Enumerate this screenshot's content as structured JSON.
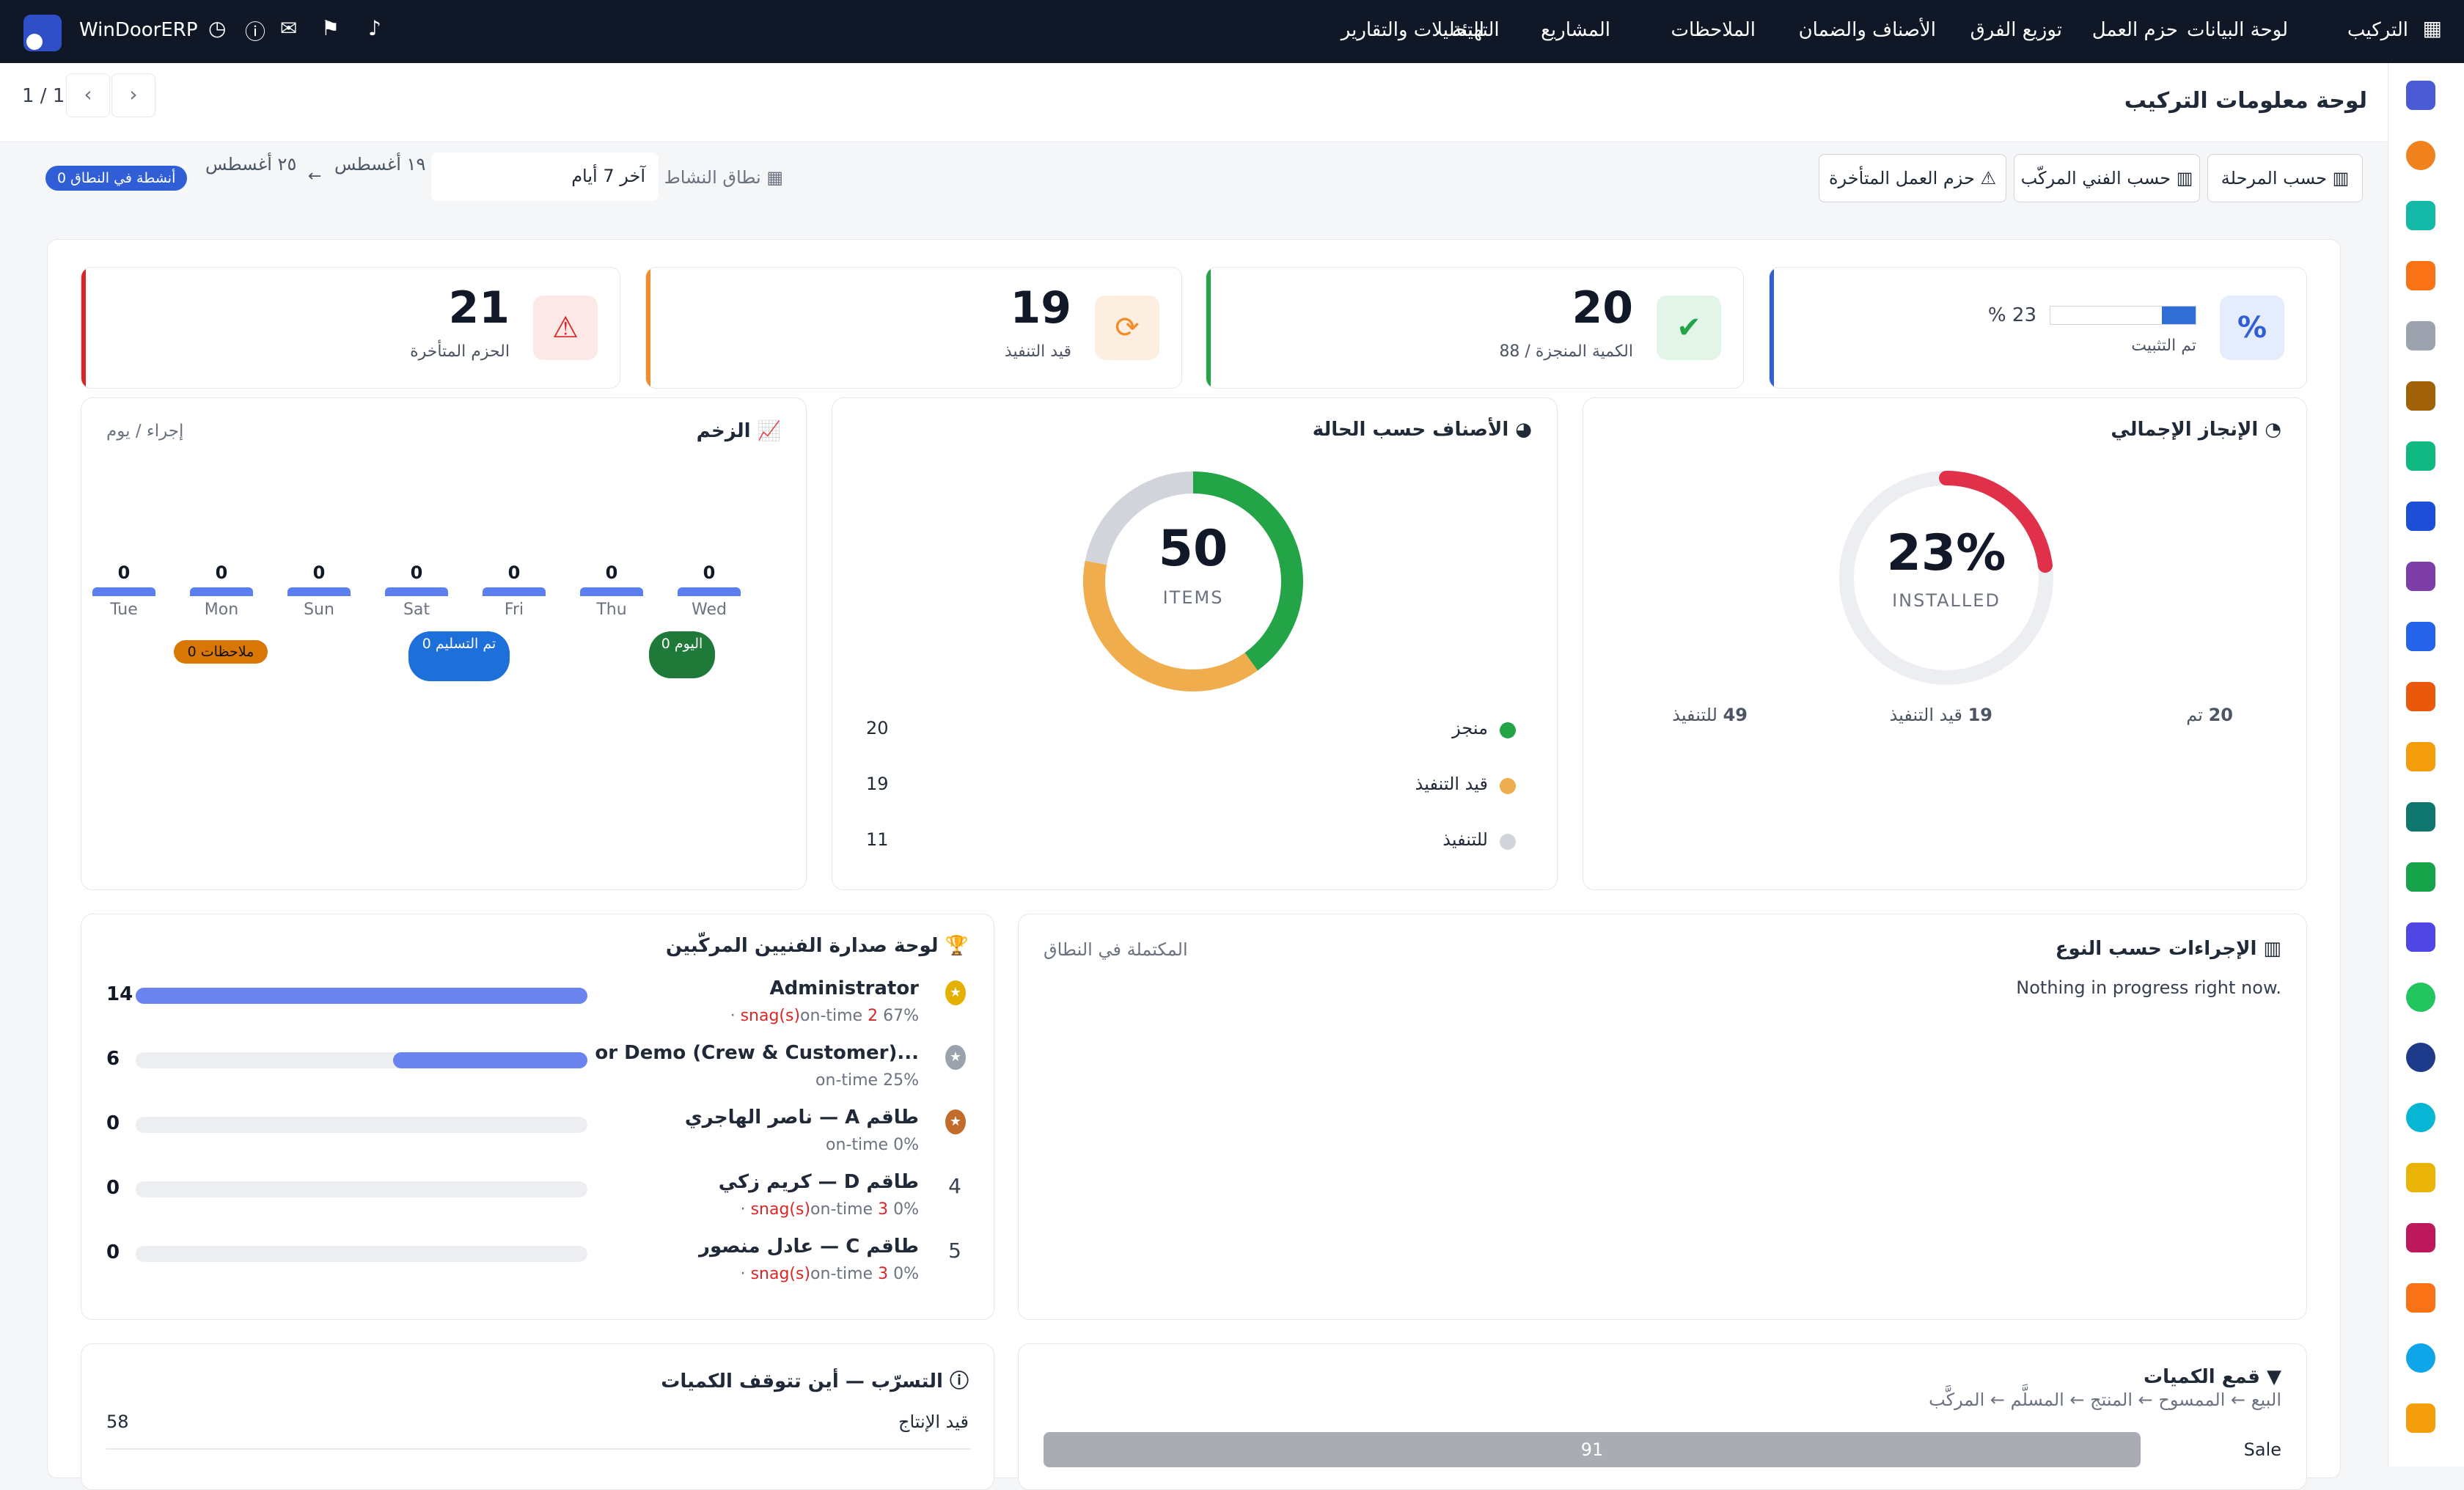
{
  "app": {
    "name": "WinDoorERP"
  },
  "nav": [
    "التركيب",
    "لوحة البيانات",
    "حزم العمل",
    "توزيع الفرق",
    "الأصناف والضمان",
    "الملاحظات",
    "المشاريع",
    "التحليلات والتقارير",
    "التهيئة"
  ],
  "page": {
    "title": "لوحة معلومات التركيب",
    "pager": "1 / 1"
  },
  "toolbar": {
    "by_stage": "حسب المرحلة",
    "by_installer": "حسب الفني المركّب",
    "overdue_packages": "حزم العمل المتأخرة"
  },
  "range": {
    "label": "نطاق النشاط",
    "select": "آخر 7 أيام",
    "from": "١٩ أغسطس",
    "to": "٢٥ أغسطس",
    "arrow": "←",
    "badge": "0 أنشطة في النطاق"
  },
  "kpis": [
    {
      "value": "21",
      "label": "الحزم المتأخرة",
      "color": "#dc2626"
    },
    {
      "value": "19",
      "label": "قيد التنفيذ",
      "color": "#f28c28"
    },
    {
      "value": "20",
      "label": "الكمية المنجزة / 88",
      "color": "#22a447"
    },
    {
      "value": "23 %",
      "label": "تم التثبيت",
      "color": "#2f5ed6",
      "progress": 0.23
    }
  ],
  "momentum": {
    "title": "الزخم",
    "unit": "إجراء / يوم",
    "days": [
      {
        "day": "Wed",
        "value": 0
      },
      {
        "day": "Thu",
        "value": 0
      },
      {
        "day": "Fri",
        "value": 0
      },
      {
        "day": "Sat",
        "value": 0
      },
      {
        "day": "Sun",
        "value": 0
      },
      {
        "day": "Mon",
        "value": 0
      },
      {
        "day": "Tue",
        "value": 0
      }
    ],
    "today": "0 اليوم",
    "delivered": "0 تم التسليم",
    "notes": "0 ملاحظات"
  },
  "items_status": {
    "title": "الأصناف حسب الحالة",
    "total": "50",
    "total_label": "ITEMS",
    "legend": [
      {
        "label": "منجز",
        "value": "20",
        "color": "#22a447"
      },
      {
        "label": "قيد التنفيذ",
        "value": "19",
        "color": "#f0ad4e"
      },
      {
        "label": "للتنفيذ",
        "value": "11",
        "color": "#d1d5db"
      }
    ]
  },
  "overall": {
    "title": "الإنجاز الإجمالي",
    "percent": "23%",
    "label": "INSTALLED",
    "progress": 0.23,
    "stats": [
      {
        "value": "20",
        "label": "تم"
      },
      {
        "value": "19",
        "label": "قيد التنفيذ"
      },
      {
        "value": "49",
        "label": "للتنفيذ"
      }
    ]
  },
  "leaderboard": {
    "title": "لوحة صدارة الفنيين المركّبين",
    "rows": [
      {
        "rank": "1",
        "name": "Administrator",
        "sub_ontime": "on-time · ",
        "snags": "2 snag(s)",
        "pct": "67%",
        "count": "14",
        "ratio": 1.0
      },
      {
        "rank": "2",
        "name": "...or Demo (Crew & Customer)",
        "sub_ontime": "on-time ",
        "snags": "",
        "pct": "25%",
        "count": "6",
        "ratio": 0.43
      },
      {
        "rank": "3",
        "name": "طاقم A — ناصر الهاجري",
        "sub_ontime": "on-time ",
        "snags": "",
        "pct": "0%",
        "count": "0",
        "ratio": 0
      },
      {
        "rank": "4",
        "name": "طاقم D — كريم زكي",
        "sub_ontime": "on-time · ",
        "snags": "3 snag(s)",
        "pct": "0%",
        "count": "0",
        "ratio": 0
      },
      {
        "rank": "5",
        "name": "طاقم C — عادل منصور",
        "sub_ontime": "on-time · ",
        "snags": "3 snag(s)",
        "pct": "0%",
        "count": "0",
        "ratio": 0
      }
    ]
  },
  "actions_by_type": {
    "title": "الإجراءات حسب النوع",
    "sub": "المكتملة في النطاق",
    "empty": "Nothing in progress right now."
  },
  "leakage": {
    "title": "التسرّب — أين تتوقف الكميات",
    "rows": [
      {
        "label": "قيد الإنتاج",
        "value": "58"
      }
    ]
  },
  "funnel": {
    "title": "قمع الكميات",
    "sub": "البيع ← الممسوح ← المنتج ← المسلَّم ← المركَّب",
    "rows": [
      {
        "label": "Sale",
        "value": "91"
      }
    ]
  }
}
